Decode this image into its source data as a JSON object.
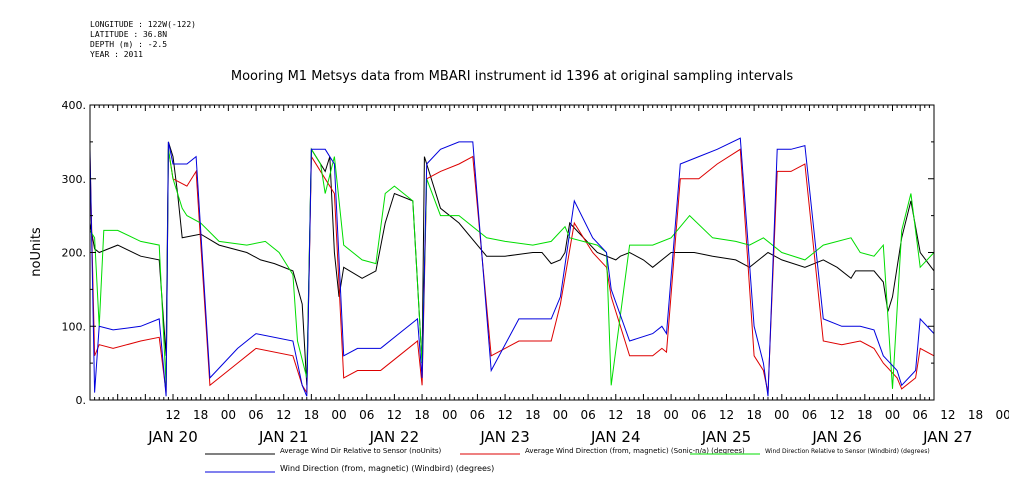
{
  "meta": {
    "longitude": "LONGITUDE : 122W(-122)",
    "latitude": "LATITUDE : 36.8N",
    "depth": "DEPTH (m) : -2.5",
    "year": "YEAR : 2011"
  },
  "chart_data": {
    "type": "line",
    "title": "Mooring M1 Metsys data from MBARI instrument id 1396 at original sampling intervals",
    "ylabel": "noUnits",
    "ylim": [
      0,
      400
    ],
    "y_ticks": [
      "0.",
      "100.",
      "200.",
      "300.",
      "400."
    ],
    "xlim_hours": [
      0,
      183
    ],
    "hour_ticks": [
      "12",
      "18",
      "00",
      "06",
      "12",
      "18",
      "00",
      "06",
      "12",
      "18",
      "00",
      "06",
      "12",
      "18",
      "00",
      "06",
      "12",
      "18",
      "00",
      "06",
      "12",
      "18",
      "00",
      "06",
      "12",
      "18",
      "00",
      "06",
      "12",
      "18",
      "00",
      "06"
    ],
    "day_labels": [
      "JAN 20",
      "JAN 21",
      "JAN 22",
      "JAN 23",
      "JAN 24",
      "JAN 25",
      "JAN 26",
      "JAN 27"
    ],
    "grid": false,
    "legend": "bottom",
    "x_note": "x values are hours after 2011-01-19 18:00",
    "series": [
      {
        "name": "Average Wind Dir Relative to Sensor (noUnits)",
        "color": "#000000",
        "x": [
          0,
          1,
          2,
          6,
          11,
          15,
          16.5,
          17,
          18,
          19,
          20,
          24,
          28,
          34,
          37,
          40,
          44,
          46,
          47,
          48,
          50,
          51,
          52,
          53,
          54,
          55,
          59,
          62,
          64,
          66,
          70,
          72,
          72.5,
          76,
          80,
          86,
          90,
          96,
          98,
          100,
          102,
          103,
          104,
          110,
          114,
          115,
          117,
          120,
          122,
          126,
          128,
          131,
          135,
          140,
          143,
          147,
          150,
          155,
          159,
          162,
          165,
          166,
          170,
          172,
          173,
          174,
          176,
          178,
          180,
          183
        ],
        "y": [
          240,
          205,
          200,
          210,
          195,
          190,
          60,
          350,
          330,
          280,
          220,
          225,
          210,
          200,
          190,
          185,
          175,
          130,
          20,
          340,
          320,
          310,
          330,
          200,
          140,
          180,
          165,
          175,
          240,
          280,
          270,
          50,
          330,
          260,
          240,
          195,
          195,
          200,
          200,
          185,
          190,
          200,
          240,
          200,
          190,
          195,
          200,
          190,
          180,
          200,
          200,
          200,
          195,
          190,
          180,
          200,
          190,
          180,
          190,
          180,
          165,
          175,
          175,
          160,
          120,
          140,
          220,
          270,
          200,
          175
        ]
      },
      {
        "name": "Average Wind Direction (from, magnetic) (Sonic-n/a) (degrees)",
        "color": "#dd0000",
        "x": [
          0,
          1,
          2,
          5,
          11,
          15,
          16.5,
          17,
          18,
          21,
          23,
          26,
          32,
          36,
          44,
          46,
          47,
          48,
          51,
          53,
          55,
          58,
          63,
          67,
          71,
          72,
          73,
          76,
          80,
          83,
          87,
          93,
          100,
          102,
          105,
          109,
          112,
          113,
          117,
          122,
          124,
          125,
          128,
          132,
          136,
          141,
          144,
          146,
          147,
          149,
          152,
          155,
          159,
          163,
          167,
          170,
          172,
          175,
          176,
          179,
          180,
          183
        ],
        "y": [
          330,
          60,
          75,
          70,
          80,
          85,
          10,
          340,
          300,
          290,
          310,
          20,
          50,
          70,
          60,
          20,
          10,
          330,
          300,
          280,
          30,
          40,
          40,
          60,
          80,
          20,
          300,
          310,
          320,
          330,
          60,
          80,
          80,
          130,
          240,
          200,
          180,
          140,
          60,
          60,
          70,
          65,
          300,
          300,
          320,
          340,
          60,
          40,
          10,
          310,
          310,
          320,
          80,
          75,
          80,
          70,
          50,
          30,
          15,
          30,
          70,
          60
        ]
      },
      {
        "name": "Wind Direction Relative to Sensor (Windbird) (degrees)",
        "color": "#00dd00",
        "x": [
          0,
          1,
          2,
          3,
          6,
          11,
          15,
          16.5,
          17,
          18,
          20,
          21,
          24,
          28,
          34,
          38,
          41,
          44,
          45,
          47,
          48,
          50,
          51,
          53,
          55,
          59,
          62,
          64,
          66,
          70,
          72,
          73,
          76,
          80,
          86,
          90,
          96,
          100,
          103,
          104,
          110,
          112,
          113,
          117,
          122,
          126,
          130,
          135,
          140,
          143,
          146,
          150,
          155,
          159,
          165,
          167,
          170,
          172,
          174,
          176,
          178,
          180,
          183
        ],
        "y": [
          230,
          220,
          100,
          230,
          230,
          215,
          210,
          20,
          340,
          300,
          260,
          250,
          240,
          215,
          210,
          215,
          200,
          170,
          80,
          30,
          340,
          320,
          280,
          330,
          210,
          190,
          185,
          280,
          290,
          270,
          50,
          300,
          250,
          250,
          220,
          215,
          210,
          215,
          235,
          220,
          210,
          200,
          20,
          210,
          210,
          220,
          250,
          220,
          215,
          210,
          220,
          200,
          190,
          210,
          220,
          200,
          195,
          210,
          15,
          230,
          280,
          180,
          200
        ]
      },
      {
        "name": "Wind Direction (from, magnetic) (Windbird) (degrees)",
        "color": "#0000dd",
        "x": [
          0,
          1,
          2,
          5,
          11,
          15,
          16.5,
          17,
          18,
          21,
          23,
          26,
          32,
          36,
          44,
          46,
          47,
          48,
          51,
          53,
          55,
          58,
          63,
          67,
          71,
          72,
          73,
          76,
          80,
          83,
          87,
          93,
          100,
          102,
          105,
          109,
          112,
          113,
          117,
          122,
          124,
          125,
          128,
          132,
          136,
          141,
          144,
          146,
          147,
          149,
          152,
          155,
          159,
          163,
          167,
          170,
          172,
          175,
          176,
          179,
          180,
          183
        ],
        "y": [
          340,
          10,
          100,
          95,
          100,
          110,
          5,
          350,
          320,
          320,
          330,
          30,
          70,
          90,
          80,
          20,
          5,
          340,
          340,
          320,
          60,
          70,
          70,
          90,
          110,
          30,
          320,
          340,
          350,
          350,
          40,
          110,
          110,
          140,
          270,
          220,
          200,
          150,
          80,
          90,
          100,
          90,
          320,
          330,
          340,
          355,
          100,
          50,
          5,
          340,
          340,
          345,
          110,
          100,
          100,
          95,
          60,
          40,
          20,
          40,
          110,
          90
        ]
      }
    ]
  }
}
